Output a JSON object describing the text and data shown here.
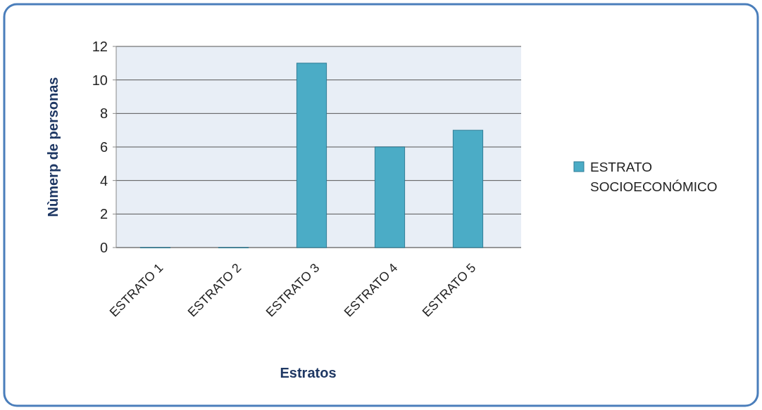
{
  "chart_data": {
    "type": "bar",
    "xlabel": "Estratos",
    "ylabel": "Nùmerp de personas",
    "categories": [
      "ESTRATO 1",
      "ESTRATO 2",
      "ESTRATO 3",
      "ESTRATO 4",
      "ESTRATO 5"
    ],
    "series": [
      {
        "name": "ESTRATO SOCIOECONÓMICO",
        "color": "#4bacc6",
        "values": [
          0,
          0,
          11,
          6,
          7
        ]
      }
    ],
    "ylim": [
      0,
      12
    ],
    "yticks": [
      0,
      2,
      4,
      6,
      8,
      10,
      12
    ],
    "grid": "y",
    "legend": "right"
  }
}
